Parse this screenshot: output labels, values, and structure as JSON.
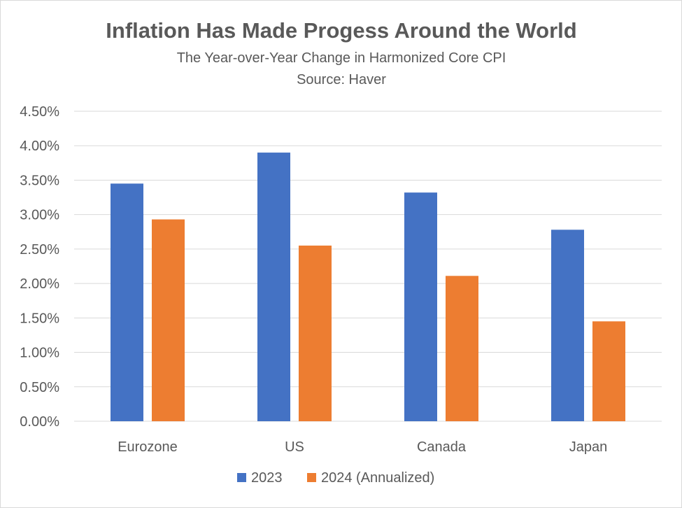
{
  "chart_data": {
    "type": "bar",
    "title": "Inflation Has Made Progess Around the World",
    "subtitle": "The Year-over-Year Change in Harmonized Core CPI",
    "source": "Source: Haver",
    "xlabel": "",
    "ylabel": "",
    "categories": [
      "Eurozone",
      "US",
      "Canada",
      "Japan"
    ],
    "series": [
      {
        "name": "2023",
        "color": "#4472c4",
        "values": [
          3.45,
          3.9,
          3.32,
          2.78
        ]
      },
      {
        "name": "2024 (Annualized)",
        "color": "#ed7d31",
        "values": [
          2.93,
          2.55,
          2.11,
          1.45
        ]
      }
    ],
    "ylim": [
      0,
      4.5
    ],
    "yticks": [
      "0.00%",
      "0.50%",
      "1.00%",
      "1.50%",
      "2.00%",
      "2.50%",
      "3.00%",
      "3.50%",
      "4.00%",
      "4.50%"
    ],
    "grid": true,
    "legend_position": "bottom"
  }
}
